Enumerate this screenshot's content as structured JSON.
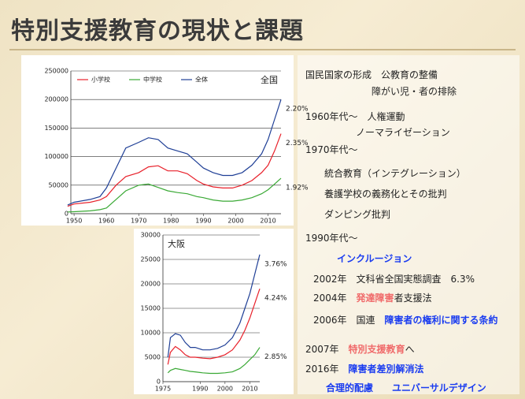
{
  "title": "特別支援教育の現状と課題",
  "chart_data": [
    {
      "type": "line",
      "label": "全国",
      "x": [
        1948,
        1950,
        1955,
        1958,
        1960,
        1963,
        1966,
        1970,
        1973,
        1976,
        1979,
        1982,
        1985,
        1988,
        1990,
        1993,
        1996,
        1999,
        2002,
        2005,
        2008,
        2010,
        2012,
        2014
      ],
      "xlim": [
        1949,
        2014
      ],
      "xticks": [
        1950,
        1960,
        1970,
        1980,
        1990,
        2000,
        2010
      ],
      "ylim": [
        0,
        250000
      ],
      "yticks": [
        0,
        50000,
        100000,
        150000,
        200000,
        250000
      ],
      "grid": true,
      "legend": "top",
      "series": [
        {
          "name": "小学校",
          "color": "#e8202a",
          "end_label": "2.35%",
          "values": [
            13000,
            17000,
            20000,
            24000,
            30000,
            50000,
            65000,
            72000,
            82000,
            84000,
            75000,
            75000,
            70000,
            58000,
            52000,
            47000,
            45000,
            45000,
            50000,
            58000,
            72000,
            85000,
            110000,
            140000
          ]
        },
        {
          "name": "中学校",
          "color": "#3aa935",
          "end_label": "1.92%",
          "values": [
            3000,
            3500,
            5000,
            7000,
            10000,
            25000,
            40000,
            50000,
            52000,
            46000,
            40000,
            37000,
            35000,
            30000,
            28000,
            24000,
            22000,
            22000,
            24000,
            28000,
            35000,
            42000,
            52000,
            62000
          ]
        },
        {
          "name": "全体",
          "color": "#1f3f96",
          "end_label": "2.20%",
          "values": [
            15000,
            20000,
            25000,
            30000,
            45000,
            80000,
            115000,
            125000,
            133000,
            130000,
            115000,
            110000,
            105000,
            90000,
            80000,
            72000,
            67000,
            67000,
            72000,
            85000,
            105000,
            130000,
            165000,
            200000
          ]
        }
      ]
    },
    {
      "type": "line",
      "label": "大阪",
      "x": [
        1977,
        1978,
        1980,
        1982,
        1984,
        1986,
        1988,
        1991,
        1994,
        1997,
        2000,
        2003,
        2006,
        2008,
        2010,
        2012,
        2014
      ],
      "xlim": [
        1975,
        2014
      ],
      "xticks": [
        1975,
        1990,
        2000,
        2010
      ],
      "ylim": [
        0,
        30000
      ],
      "yticks": [
        0,
        5000,
        10000,
        15000,
        20000,
        25000,
        30000
      ],
      "grid": true,
      "series": [
        {
          "color": "#e8202a",
          "end_label": "4.24%",
          "values": [
            3500,
            6000,
            7200,
            6500,
            5500,
            5000,
            5000,
            4800,
            4700,
            5000,
            5500,
            6500,
            8500,
            10500,
            13000,
            16000,
            19000
          ]
        },
        {
          "color": "#3aa935",
          "end_label": "2.85%",
          "values": [
            1800,
            2300,
            2700,
            2500,
            2300,
            2100,
            2000,
            1800,
            1700,
            1700,
            1800,
            2000,
            2700,
            3500,
            4500,
            5500,
            7000
          ]
        },
        {
          "color": "#1f3f96",
          "end_label": "3.76%",
          "values": [
            5000,
            9000,
            9800,
            9500,
            8000,
            7000,
            7000,
            6500,
            6500,
            6800,
            7500,
            9000,
            12000,
            15000,
            18000,
            22000,
            26000
          ]
        }
      ]
    }
  ],
  "notes": [
    [
      "国民国家の形成　公教育の整備"
    ],
    [
      "障がい児・者の排除"
    ],
    [
      "1960年代～　人権運動"
    ],
    [
      "ノーマライゼーション"
    ],
    [
      "1970年代～"
    ],
    [
      "統合教育（インテグレーション）"
    ],
    [
      "養護学校の義務化とその批判"
    ],
    [
      "ダンピング批判"
    ],
    [
      "1990年代～"
    ],
    [
      "インクルージョン"
    ],
    [
      "2002年　文科省全国実態調査　6.3%"
    ],
    [
      "2004年　",
      "発達障害",
      "者支援法"
    ],
    [
      "2006年　国連　",
      "障害者の権利に関する条約"
    ],
    [
      "2007年　",
      "特別支援教育",
      "へ"
    ],
    [
      "2016年　",
      "障害者差別解消法"
    ],
    [
      "合理的配慮　　ユニバーサルデザイン"
    ]
  ]
}
